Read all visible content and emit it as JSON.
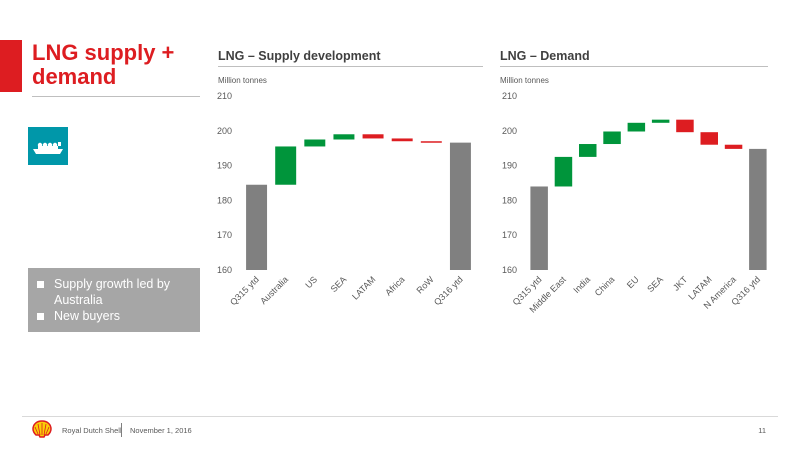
{
  "slide": {
    "title": "LNG supply + demand",
    "bullets": [
      "Supply growth led by Australia",
      "New buyers"
    ],
    "icon": "lng-ship-icon"
  },
  "footer": {
    "company": "Royal Dutch Shell",
    "date": "November 1, 2016",
    "page": "11"
  },
  "colors": {
    "accent": "#dd1d21",
    "increase": "#00953b",
    "decrease": "#dd1d21",
    "total": "#808080",
    "icon_tile": "#0097a9"
  },
  "chart_data": [
    {
      "type": "bar",
      "variant": "waterfall",
      "title": "LNG – Supply development",
      "ylabel": "Million tonnes",
      "ylim": [
        160,
        210
      ],
      "yticks": [
        160,
        170,
        180,
        190,
        200,
        210
      ],
      "categories": [
        "Q315 ytd",
        "Australia",
        "US",
        "SEA",
        "LATAM",
        "Africa",
        "RoW",
        "Q316 ytd"
      ],
      "bars": [
        {
          "label": "Q315 ytd",
          "kind": "total",
          "start": 160,
          "end": 184.5
        },
        {
          "label": "Australia",
          "kind": "increase",
          "start": 184.5,
          "end": 195.5
        },
        {
          "label": "US",
          "kind": "increase",
          "start": 195.5,
          "end": 197.5
        },
        {
          "label": "SEA",
          "kind": "increase",
          "start": 197.5,
          "end": 199
        },
        {
          "label": "LATAM",
          "kind": "decrease",
          "start": 199,
          "end": 197.8
        },
        {
          "label": "Africa",
          "kind": "decrease",
          "start": 197.8,
          "end": 197
        },
        {
          "label": "RoW",
          "kind": "decrease",
          "start": 197,
          "end": 196.6
        },
        {
          "label": "Q316 ytd",
          "kind": "total",
          "start": 160,
          "end": 196.6
        }
      ]
    },
    {
      "type": "bar",
      "variant": "waterfall",
      "title": "LNG – Demand",
      "ylabel": "Million tonnes",
      "ylim": [
        160,
        210
      ],
      "yticks": [
        160,
        170,
        180,
        190,
        200,
        210
      ],
      "categories": [
        "Q315 ytd",
        "Middle East",
        "India",
        "China",
        "EU",
        "SEA",
        "JKT",
        "LATAM",
        "N America",
        "Q316 ytd"
      ],
      "bars": [
        {
          "label": "Q315 ytd",
          "kind": "total",
          "start": 160,
          "end": 184
        },
        {
          "label": "Middle East",
          "kind": "increase",
          "start": 184,
          "end": 192.5
        },
        {
          "label": "India",
          "kind": "increase",
          "start": 192.5,
          "end": 196.2
        },
        {
          "label": "China",
          "kind": "increase",
          "start": 196.2,
          "end": 199.8
        },
        {
          "label": "EU",
          "kind": "increase",
          "start": 199.8,
          "end": 202.3
        },
        {
          "label": "SEA",
          "kind": "increase",
          "start": 202.3,
          "end": 203.2
        },
        {
          "label": "JKT",
          "kind": "decrease",
          "start": 203.2,
          "end": 199.6
        },
        {
          "label": "LATAM",
          "kind": "decrease",
          "start": 199.6,
          "end": 196
        },
        {
          "label": "N America",
          "kind": "decrease",
          "start": 196,
          "end": 194.8
        },
        {
          "label": "Q316 ytd",
          "kind": "total",
          "start": 160,
          "end": 194.8
        }
      ]
    }
  ]
}
